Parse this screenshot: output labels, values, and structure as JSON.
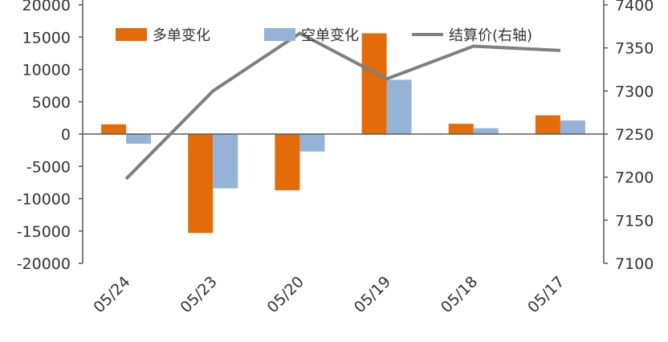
{
  "chart_data": {
    "type": "bar",
    "categories": [
      "05/24",
      "05/23",
      "05/20",
      "05/19",
      "05/18",
      "05/17"
    ],
    "series": [
      {
        "name": "多单变化",
        "type": "bar",
        "axis": "left",
        "color": "#E36C09",
        "values": [
          1500,
          -15300,
          -8700,
          15600,
          1600,
          2900
        ]
      },
      {
        "name": "空单变化",
        "type": "bar",
        "axis": "left",
        "color": "#95B3D7",
        "values": [
          -1500,
          -8400,
          -2700,
          8400,
          900,
          2100
        ]
      },
      {
        "name": "结算价(右轴)",
        "type": "line",
        "axis": "right",
        "color": "#7F7F7F",
        "values": [
          7198,
          7300,
          7367,
          7314,
          7352,
          7347
        ]
      }
    ],
    "y_left": {
      "min": -20000,
      "max": 20000,
      "step": 5000,
      "ticks": [
        "-20000",
        "-15000",
        "-10000",
        "-5000",
        "0",
        "5000",
        "10000",
        "15000",
        "20000"
      ]
    },
    "y_right": {
      "min": 7100,
      "max": 7400,
      "step": 50,
      "ticks": [
        "7100",
        "7150",
        "7200",
        "7250",
        "7300",
        "7350",
        "7400"
      ]
    },
    "legend_position": "top",
    "grid": false,
    "title": "",
    "xlabel": "",
    "ylabel": ""
  }
}
